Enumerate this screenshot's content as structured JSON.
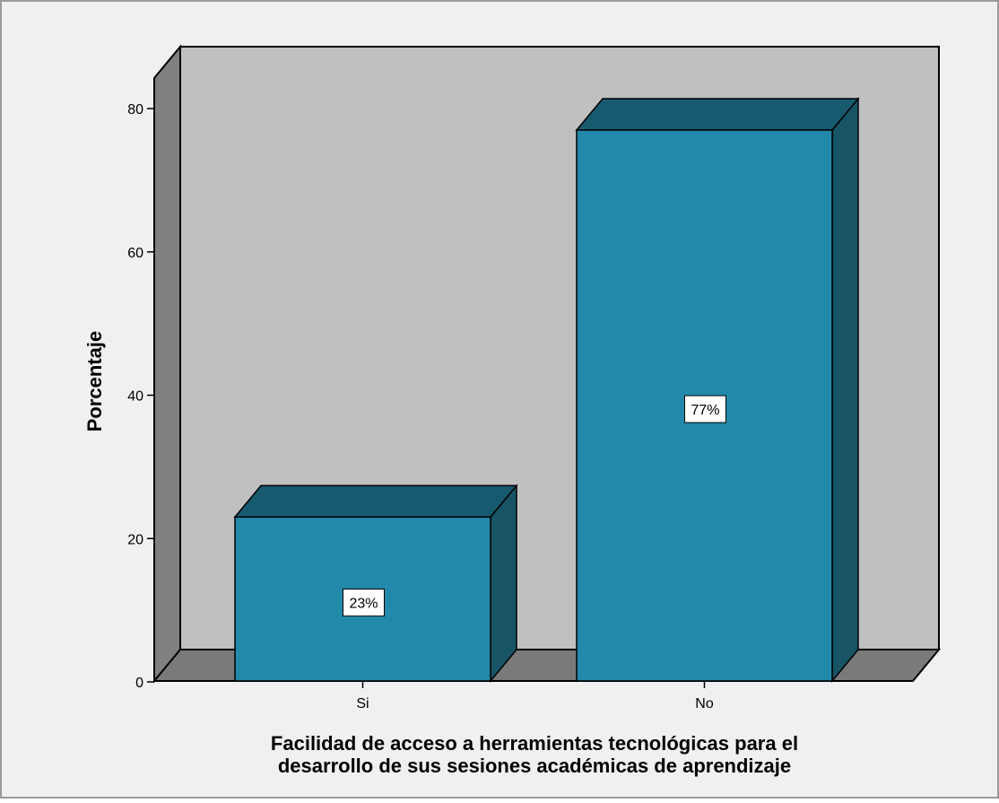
{
  "chart_data": {
    "type": "bar",
    "style": "3d",
    "title": "",
    "categories": [
      "Si",
      "No"
    ],
    "values": [
      23,
      77
    ],
    "data_labels": [
      "23%",
      "77%"
    ],
    "xlabel_lines": [
      "Facilidad de acceso a herramientas tecnológicas para el",
      "desarrollo de sus sesiones académicas de aprendizaje"
    ],
    "ylabel": "Porcentaje",
    "ylim": [
      0,
      80
    ],
    "yticks": [
      0,
      20,
      40,
      60,
      80
    ],
    "grid": false,
    "legend": "none"
  },
  "colors": {
    "page_background": "#f0f0f0",
    "back_wall": "#c0c0c0",
    "side_wall": "#808080",
    "floor": "#7a7a7a",
    "bar_front": "#2389aa",
    "bar_top": "#175a6f",
    "bar_side": "#175466",
    "outline": "#000000",
    "label_box": "#ffffff",
    "text": "#000000"
  }
}
